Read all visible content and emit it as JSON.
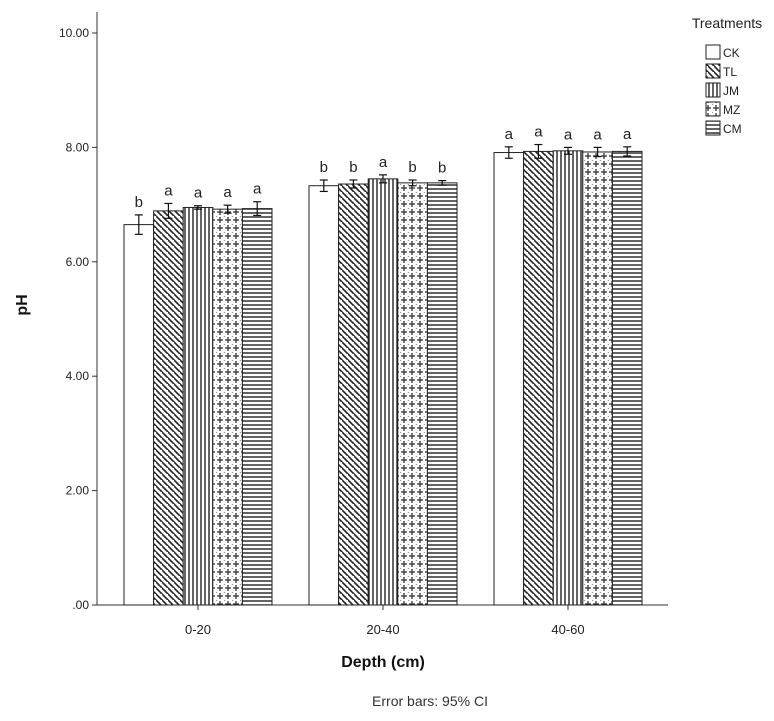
{
  "chart_data": {
    "type": "bar",
    "title": "",
    "xlabel": "Depth (cm)",
    "ylabel": "pH",
    "ylim": [
      0,
      10
    ],
    "yticks": [
      ".00",
      "2.00",
      "4.00",
      "6.00",
      "8.00",
      "10.00"
    ],
    "categories": [
      "0-20",
      "20-40",
      "40-60"
    ],
    "legend": {
      "title": "Treatments",
      "position": "top-right"
    },
    "grid": false,
    "series": [
      {
        "name": "CK",
        "pattern": "none",
        "values": [
          6.65,
          7.33,
          7.91
        ],
        "errors": [
          0.17,
          0.1,
          0.1
        ],
        "labels": [
          "b",
          "b",
          "a"
        ]
      },
      {
        "name": "TL",
        "pattern": "diagonal",
        "values": [
          6.89,
          7.36,
          7.93
        ],
        "errors": [
          0.13,
          0.07,
          0.12
        ],
        "labels": [
          "a",
          "b",
          "a"
        ]
      },
      {
        "name": "JM",
        "pattern": "vertical",
        "values": [
          6.95,
          7.45,
          7.94
        ],
        "errors": [
          0.03,
          0.07,
          0.06
        ],
        "labels": [
          "a",
          "a",
          "a"
        ]
      },
      {
        "name": "MZ",
        "pattern": "cross",
        "values": [
          6.92,
          7.38,
          7.92
        ],
        "errors": [
          0.07,
          0.05,
          0.08
        ],
        "labels": [
          "a",
          "b",
          "a"
        ]
      },
      {
        "name": "CM",
        "pattern": "horizontal",
        "values": [
          6.93,
          7.38,
          7.93
        ],
        "errors": [
          0.12,
          0.04,
          0.08
        ],
        "labels": [
          "a",
          "b",
          "a"
        ]
      }
    ],
    "footnote": "Error bars: 95% CI"
  },
  "colors": {
    "bar_fill": "#ffffff",
    "stroke": "#222222"
  }
}
